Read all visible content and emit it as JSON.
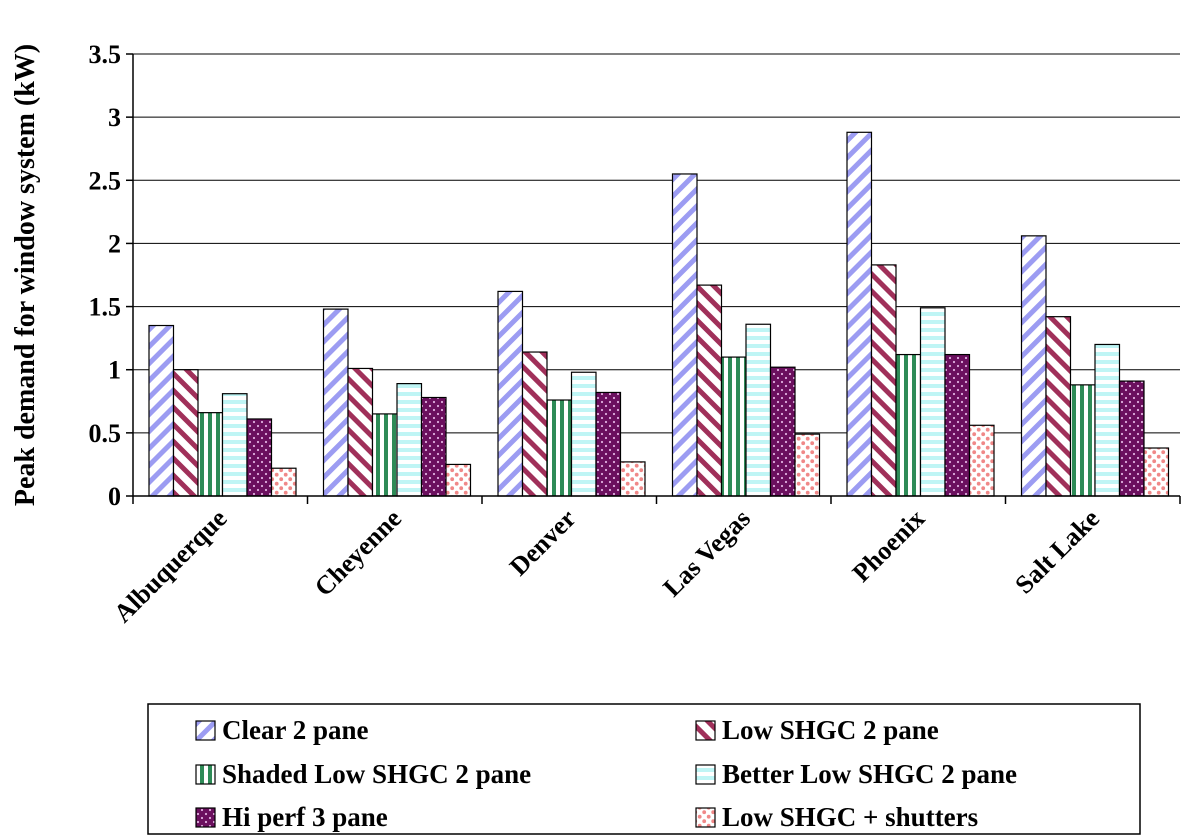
{
  "chart_data": {
    "type": "bar",
    "title": "",
    "xlabel": "",
    "ylabel": "Peak demand for window system (kW)",
    "ylim": [
      0,
      3.5
    ],
    "yticks": [
      0,
      0.5,
      1,
      1.5,
      2,
      2.5,
      3,
      3.5
    ],
    "ytick_labels": [
      "0",
      "0.5",
      "1",
      "1.5",
      "2",
      "2.5",
      "3",
      "3.5"
    ],
    "grid": true,
    "legend_position": "bottom",
    "categories": [
      "Albuquerque",
      "Cheyenne",
      "Denver",
      "Las Vegas",
      "Phoenix",
      "Salt Lake"
    ],
    "series": [
      {
        "name": "Clear 2 pane",
        "values": [
          1.35,
          1.48,
          1.62,
          2.55,
          2.88,
          2.06
        ],
        "color": "#a0a0f0",
        "pattern": "diagonal-stripe"
      },
      {
        "name": "Low SHGC 2 pane",
        "values": [
          1.0,
          1.01,
          1.14,
          1.67,
          1.83,
          1.42
        ],
        "color": "#a0305a",
        "pattern": "reverse-diagonal-stripe"
      },
      {
        "name": "Shaded Low SHGC 2 pane",
        "values": [
          0.66,
          0.65,
          0.76,
          1.1,
          1.12,
          0.88
        ],
        "color": "#2e8b57",
        "pattern": "vertical-stripe"
      },
      {
        "name": "Better Low SHGC 2 pane",
        "values": [
          0.81,
          0.89,
          0.98,
          1.36,
          1.49,
          1.2
        ],
        "color": "#bff5f5",
        "pattern": "horizontal-stripe"
      },
      {
        "name": "Hi perf 3 pane",
        "values": [
          0.61,
          0.78,
          0.82,
          1.02,
          1.12,
          0.91
        ],
        "color": "#6b0f5e",
        "pattern": "dots"
      },
      {
        "name": "Low SHGC + shutters",
        "values": [
          0.22,
          0.25,
          0.27,
          0.49,
          0.56,
          0.38
        ],
        "color": "#f4a0a0",
        "pattern": "dots-light"
      }
    ]
  }
}
